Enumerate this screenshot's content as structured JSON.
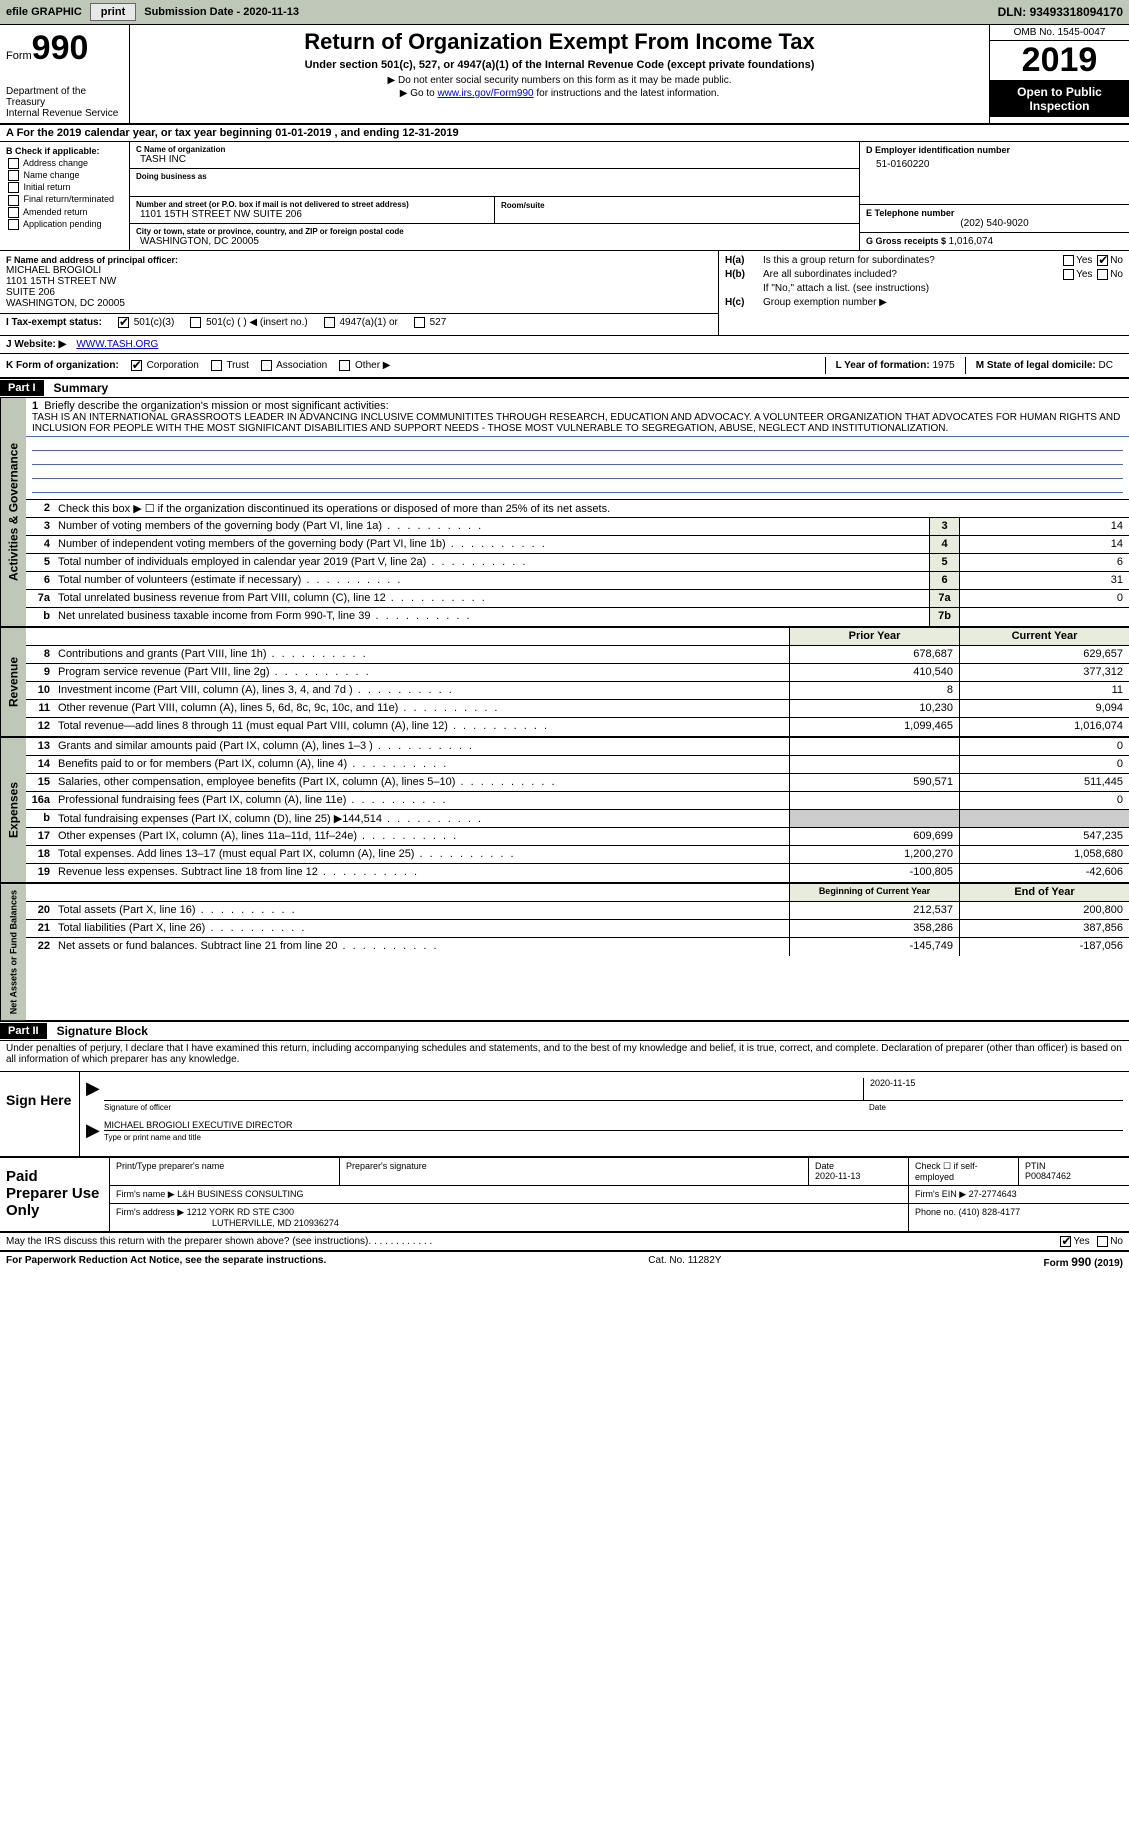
{
  "topbar": {
    "efile": "efile GRAPHIC",
    "print": "print",
    "sub_label": "Submission Date - ",
    "sub_date": "2020-11-13",
    "dln_label": "DLN: ",
    "dln": "93493318094170"
  },
  "header": {
    "form_label": "Form",
    "form_num": "990",
    "dept1": "Department of the Treasury",
    "dept2": "Internal Revenue Service",
    "title": "Return of Organization Exempt From Income Tax",
    "sub": "Under section 501(c), 527, or 4947(a)(1) of the Internal Revenue Code (except private foundations)",
    "note1": "Do not enter social security numbers on this form as it may be made public.",
    "note2_pre": "Go to ",
    "note2_link": "www.irs.gov/Form990",
    "note2_post": " for instructions and the latest information.",
    "omb": "OMB No. 1545-0047",
    "year": "2019",
    "inspect": "Open to Public Inspection"
  },
  "row_a": {
    "pre": "A For the 2019 calendar year, or tax year beginning ",
    "begin": "01-01-2019",
    "mid": " , and ending ",
    "end": "12-31-2019"
  },
  "b": {
    "hdr": "B Check if applicable:",
    "items": [
      "Address change",
      "Name change",
      "Initial return",
      "Final return/terminated",
      "Amended return",
      "Application pending"
    ]
  },
  "c": {
    "name_lbl": "C Name of organization",
    "name": "TASH INC",
    "dba_lbl": "Doing business as",
    "dba": "",
    "addr_lbl": "Number and street (or P.O. box if mail is not delivered to street address)",
    "room_lbl": "Room/suite",
    "addr": "1101 15TH STREET NW SUITE 206",
    "city_lbl": "City or town, state or province, country, and ZIP or foreign postal code",
    "city": "WASHINGTON, DC  20005"
  },
  "d": {
    "lbl": "D Employer identification number",
    "val": "51-0160220"
  },
  "e": {
    "lbl": "E Telephone number",
    "val": "(202) 540-9020"
  },
  "g": {
    "lbl": "G Gross receipts $ ",
    "val": "1,016,074"
  },
  "f": {
    "lbl": "F Name and address of principal officer:",
    "name": "MICHAEL BROGIOLI",
    "l1": "1101 15TH STREET NW",
    "l2": "SUITE 206",
    "l3": "WASHINGTON, DC  20005"
  },
  "h": {
    "a_tag": "H(a)",
    "a_txt": "Is this a group return for subordinates?",
    "b_tag": "H(b)",
    "b_txt": "Are all subordinates included?",
    "b_note": "If \"No,\" attach a list. (see instructions)",
    "c_tag": "H(c)",
    "c_txt": "Group exemption number ▶",
    "yes": "Yes",
    "no": "No"
  },
  "i": {
    "lbl": "I    Tax-exempt status:",
    "o1": "501(c)(3)",
    "o2": "501(c) (   ) ◀ (insert no.)",
    "o3": "4947(a)(1) or",
    "o4": "527"
  },
  "j": {
    "lbl": "J   Website: ▶",
    "val": "WWW.TASH.ORG"
  },
  "k": {
    "lbl": "K Form of organization:",
    "o1": "Corporation",
    "o2": "Trust",
    "o3": "Association",
    "o4": "Other ▶",
    "l_lbl": "L Year of formation: ",
    "l_val": "1975",
    "m_lbl": "M State of legal domicile: ",
    "m_val": "DC"
  },
  "part1": {
    "hdr": "Part I",
    "title": "Summary",
    "q1_lbl": "1",
    "q1": "Briefly describe the organization's mission or most significant activities:",
    "q1_text": "TASH IS AN INTERNATIONAL GRASSROOTS LEADER IN ADVANCING INCLUSIVE COMMUNITITES THROUGH RESEARCH, EDUCATION AND ADVOCACY. A VOLUNTEER ORGANIZATION THAT ADVOCATES FOR HUMAN RIGHTS AND INCLUSION FOR PEOPLE WITH THE MOST SIGNIFICANT DISABILITIES AND SUPPORT NEEDS - THOSE MOST VULNERABLE TO SEGREGATION, ABUSE, NEGLECT AND INSTITUTIONALIZATION.",
    "q2_lbl": "2",
    "q2": "Check this box ▶ ☐ if the organization discontinued its operations or disposed of more than 25% of its net assets.",
    "tab_ag": "Activities & Governance",
    "tab_rev": "Revenue",
    "tab_exp": "Expenses",
    "tab_na": "Net Assets or Fund Balances",
    "rows_ag": [
      {
        "n": "3",
        "d": "Number of voting members of the governing body (Part VI, line 1a)",
        "box": "3",
        "v": "14"
      },
      {
        "n": "4",
        "d": "Number of independent voting members of the governing body (Part VI, line 1b)",
        "box": "4",
        "v": "14"
      },
      {
        "n": "5",
        "d": "Total number of individuals employed in calendar year 2019 (Part V, line 2a)",
        "box": "5",
        "v": "6"
      },
      {
        "n": "6",
        "d": "Total number of volunteers (estimate if necessary)",
        "box": "6",
        "v": "31"
      },
      {
        "n": "7a",
        "d": "Total unrelated business revenue from Part VIII, column (C), line 12",
        "box": "7a",
        "v": "0"
      },
      {
        "n": "b",
        "d": "Net unrelated business taxable income from Form 990-T, line 39",
        "box": "7b",
        "v": ""
      }
    ],
    "hdr_prior": "Prior Year",
    "hdr_curr": "Current Year",
    "rows_rev": [
      {
        "n": "8",
        "d": "Contributions and grants (Part VIII, line 1h)",
        "p": "678,687",
        "c": "629,657"
      },
      {
        "n": "9",
        "d": "Program service revenue (Part VIII, line 2g)",
        "p": "410,540",
        "c": "377,312"
      },
      {
        "n": "10",
        "d": "Investment income (Part VIII, column (A), lines 3, 4, and 7d )",
        "p": "8",
        "c": "11"
      },
      {
        "n": "11",
        "d": "Other revenue (Part VIII, column (A), lines 5, 6d, 8c, 9c, 10c, and 11e)",
        "p": "10,230",
        "c": "9,094"
      },
      {
        "n": "12",
        "d": "Total revenue—add lines 8 through 11 (must equal Part VIII, column (A), line 12)",
        "p": "1,099,465",
        "c": "1,016,074"
      }
    ],
    "rows_exp": [
      {
        "n": "13",
        "d": "Grants and similar amounts paid (Part IX, column (A), lines 1–3 )",
        "p": "",
        "c": "0"
      },
      {
        "n": "14",
        "d": "Benefits paid to or for members (Part IX, column (A), line 4)",
        "p": "",
        "c": "0"
      },
      {
        "n": "15",
        "d": "Salaries, other compensation, employee benefits (Part IX, column (A), lines 5–10)",
        "p": "590,571",
        "c": "511,445"
      },
      {
        "n": "16a",
        "d": "Professional fundraising fees (Part IX, column (A), line 11e)",
        "p": "",
        "c": "0"
      },
      {
        "n": "b",
        "d": "Total fundraising expenses (Part IX, column (D), line 25) ▶144,514",
        "p": "",
        "c": "",
        "shade": true
      },
      {
        "n": "17",
        "d": "Other expenses (Part IX, column (A), lines 11a–11d, 11f–24e)",
        "p": "609,699",
        "c": "547,235"
      },
      {
        "n": "18",
        "d": "Total expenses. Add lines 13–17 (must equal Part IX, column (A), line 25)",
        "p": "1,200,270",
        "c": "1,058,680"
      },
      {
        "n": "19",
        "d": "Revenue less expenses. Subtract line 18 from line 12",
        "p": "-100,805",
        "c": "-42,606"
      }
    ],
    "hdr_boy": "Beginning of Current Year",
    "hdr_eoy": "End of Year",
    "rows_na": [
      {
        "n": "20",
        "d": "Total assets (Part X, line 16)",
        "p": "212,537",
        "c": "200,800"
      },
      {
        "n": "21",
        "d": "Total liabilities (Part X, line 26)",
        "p": "358,286",
        "c": "387,856"
      },
      {
        "n": "22",
        "d": "Net assets or fund balances. Subtract line 21 from line 20",
        "p": "-145,749",
        "c": "-187,056"
      }
    ]
  },
  "part2": {
    "hdr": "Part II",
    "title": "Signature Block",
    "note": "Under penalties of perjury, I declare that I have examined this return, including accompanying schedules and statements, and to the best of my knowledge and belief, it is true, correct, and complete. Declaration of preparer (other than officer) is based on all information of which preparer has any knowledge.",
    "sign_here": "Sign Here",
    "sig_officer_lbl": "Signature of officer",
    "sig_date": "2020-11-15",
    "date_lbl": "Date",
    "sig_name": "MICHAEL BROGIOLI  EXECUTIVE DIRECTOR",
    "sig_name_lbl": "Type or print name and title"
  },
  "prep": {
    "title": "Paid Preparer Use Only",
    "h1": "Print/Type preparer's name",
    "h2": "Preparer's signature",
    "h3_lbl": "Date",
    "h3": "2020-11-13",
    "h4_lbl": "Check ☐ if self-employed",
    "h5_lbl": "PTIN",
    "h5": "P00847462",
    "firm_name_lbl": "Firm's name    ▶ ",
    "firm_name": "L&H BUSINESS CONSULTING",
    "firm_ein_lbl": "Firm's EIN ▶ ",
    "firm_ein": "27-2774643",
    "firm_addr_lbl": "Firm's address ▶ ",
    "firm_addr1": "1212 YORK RD STE C300",
    "firm_addr2": "LUTHERVILLE, MD  210936274",
    "phone_lbl": "Phone no. ",
    "phone": "(410) 828-4177"
  },
  "footer": {
    "q": "May the IRS discuss this return with the preparer shown above? (see instructions)",
    "yes": "Yes",
    "no": "No",
    "pra": "For Paperwork Reduction Act Notice, see the separate instructions.",
    "cat": "Cat. No. 11282Y",
    "form": "Form 990 (2019)"
  }
}
